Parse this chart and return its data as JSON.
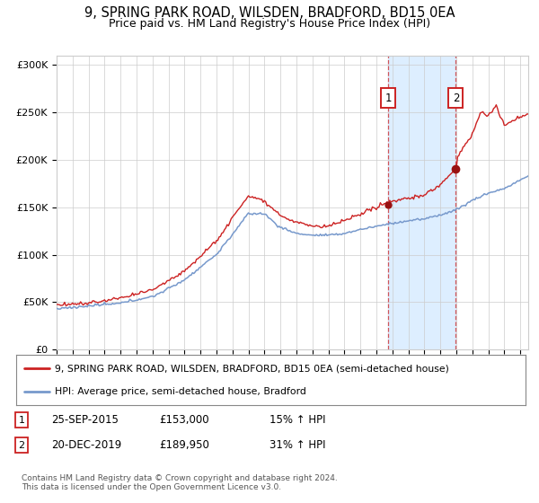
{
  "title": "9, SPRING PARK ROAD, WILSDEN, BRADFORD, BD15 0EA",
  "subtitle": "Price paid vs. HM Land Registry's House Price Index (HPI)",
  "title_fontsize": 10.5,
  "subtitle_fontsize": 9,
  "ylim": [
    0,
    310000
  ],
  "yticks": [
    0,
    50000,
    100000,
    150000,
    200000,
    250000,
    300000
  ],
  "ytick_labels": [
    "£0",
    "£50K",
    "£100K",
    "£150K",
    "£200K",
    "£250K",
    "£300K"
  ],
  "xmin": 1995,
  "xmax": 2024.5,
  "sale1_date_num": 2015.73,
  "sale1_price": 153000,
  "sale2_date_num": 2019.97,
  "sale2_price": 189950,
  "line1_color": "#cc2222",
  "line2_color": "#7799cc",
  "shade_color": "#ddeeff",
  "grid_color": "#cccccc",
  "legend_label1": "9, SPRING PARK ROAD, WILSDEN, BRADFORD, BD15 0EA (semi-detached house)",
  "legend_label2": "HPI: Average price, semi-detached house, Bradford",
  "sale1_date_str": "25-SEP-2015",
  "sale1_price_str": "£153,000",
  "sale1_hpi_str": "15% ↑ HPI",
  "sale2_date_str": "20-DEC-2019",
  "sale2_price_str": "£189,950",
  "sale2_hpi_str": "31% ↑ HPI",
  "footer": "Contains HM Land Registry data © Crown copyright and database right 2024.\nThis data is licensed under the Open Government Licence v3.0.",
  "bg_color": "#ffffff"
}
